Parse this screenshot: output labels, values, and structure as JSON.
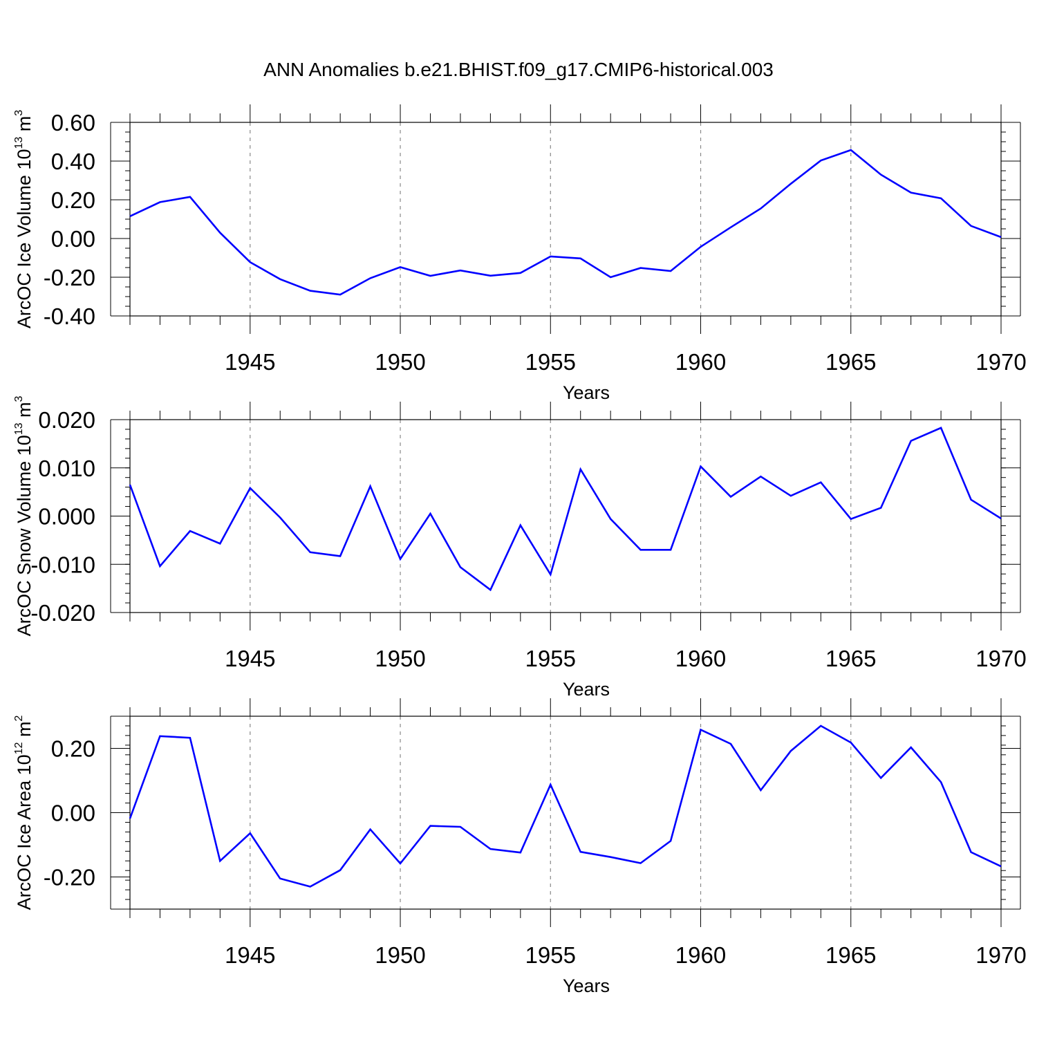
{
  "title": "ANN Anomalies b.e21.BHIST.f09_g17.CMIP6-historical.003",
  "colors": {
    "line": "#0000ff",
    "grid": "#888888",
    "axis": "#000000"
  },
  "chart_data": [
    {
      "type": "line",
      "ylabel": {
        "main": "ArcOC Ice Volume 10",
        "sup": "13",
        "unit": " m",
        "unit_sup": "3"
      },
      "xlabel": "Years",
      "xlim": [
        1941,
        1970
      ],
      "ylim": [
        -0.4,
        0.6
      ],
      "yticks": [
        -0.4,
        -0.2,
        0.0,
        0.2,
        0.4,
        0.6
      ],
      "ytick_labels": [
        "-0.40",
        "-0.20",
        "0.00",
        "0.20",
        "0.40",
        "0.60"
      ],
      "xticks": [
        1945,
        1950,
        1955,
        1960,
        1965,
        1970
      ],
      "xtick_labels": [
        "1945",
        "1950",
        "1955",
        "1960",
        "1965",
        "1970"
      ],
      "grid_x": [
        1945,
        1950,
        1955,
        1960,
        1965
      ],
      "x": [
        1941,
        1942,
        1943,
        1944,
        1945,
        1946,
        1947,
        1948,
        1949,
        1950,
        1951,
        1952,
        1953,
        1954,
        1955,
        1956,
        1957,
        1958,
        1959,
        1960,
        1961,
        1962,
        1963,
        1964,
        1965,
        1966,
        1967,
        1968,
        1969,
        1970
      ],
      "values": [
        0.115,
        0.188,
        0.215,
        0.03,
        -0.122,
        -0.21,
        -0.27,
        -0.29,
        -0.205,
        -0.148,
        -0.193,
        -0.165,
        -0.192,
        -0.178,
        -0.093,
        -0.103,
        -0.2,
        -0.152,
        -0.168,
        -0.043,
        0.058,
        0.155,
        0.283,
        0.403,
        0.457,
        0.33,
        0.237,
        0.208,
        0.065,
        0.007
      ]
    },
    {
      "type": "line",
      "ylabel": {
        "main": "ArcOC Snow Volume 10",
        "sup": "13",
        "unit": " m",
        "unit_sup": "3"
      },
      "xlabel": "Years",
      "xlim": [
        1941,
        1970
      ],
      "ylim": [
        -0.02,
        0.02
      ],
      "yticks": [
        -0.02,
        -0.01,
        0.0,
        0.01,
        0.02
      ],
      "ytick_labels": [
        "-0.020",
        "-0.010",
        "0.000",
        "0.010",
        "0.020"
      ],
      "xticks": [
        1945,
        1950,
        1955,
        1960,
        1965,
        1970
      ],
      "xtick_labels": [
        "1945",
        "1950",
        "1955",
        "1960",
        "1965",
        "1970"
      ],
      "grid_x": [
        1945,
        1950,
        1955,
        1960,
        1965
      ],
      "x": [
        1941,
        1942,
        1943,
        1944,
        1945,
        1946,
        1947,
        1948,
        1949,
        1950,
        1951,
        1952,
        1953,
        1954,
        1955,
        1956,
        1957,
        1958,
        1959,
        1960,
        1961,
        1962,
        1963,
        1964,
        1965,
        1966,
        1967,
        1968,
        1969,
        1970
      ],
      "values": [
        0.0065,
        -0.0104,
        -0.0031,
        -0.0057,
        0.0058,
        -0.0003,
        -0.0075,
        -0.0083,
        0.0062,
        -0.0089,
        0.0005,
        -0.0106,
        -0.0153,
        -0.0019,
        -0.0121,
        0.0097,
        -0.0006,
        -0.007,
        -0.007,
        0.0103,
        0.004,
        0.0082,
        0.0042,
        0.007,
        -0.0006,
        0.0017,
        0.0156,
        0.0183,
        0.0034,
        -0.0005
      ]
    },
    {
      "type": "line",
      "ylabel": {
        "main": "ArcOC Ice Area 10",
        "sup": "12",
        "unit": " m",
        "unit_sup": "2"
      },
      "xlabel": "Years",
      "xlim": [
        1941,
        1970
      ],
      "ylim": [
        -0.3,
        0.3
      ],
      "yticks": [
        -0.2,
        0.0,
        0.2
      ],
      "ytick_labels": [
        "-0.20",
        "0.00",
        "0.20"
      ],
      "xticks": [
        1945,
        1950,
        1955,
        1960,
        1965,
        1970
      ],
      "xtick_labels": [
        "1945",
        "1950",
        "1955",
        "1960",
        "1965",
        "1970"
      ],
      "grid_x": [
        1945,
        1950,
        1955,
        1960,
        1965
      ],
      "x": [
        1941,
        1942,
        1943,
        1944,
        1945,
        1946,
        1947,
        1948,
        1949,
        1950,
        1951,
        1952,
        1953,
        1954,
        1955,
        1956,
        1957,
        1958,
        1959,
        1960,
        1961,
        1962,
        1963,
        1964,
        1965,
        1966,
        1967,
        1968,
        1969,
        1970
      ],
      "values": [
        -0.018,
        0.238,
        0.233,
        -0.15,
        -0.064,
        -0.205,
        -0.23,
        -0.179,
        -0.052,
        -0.158,
        -0.041,
        -0.044,
        -0.113,
        -0.124,
        0.087,
        -0.122,
        -0.138,
        -0.157,
        -0.088,
        0.258,
        0.214,
        0.07,
        0.192,
        0.27,
        0.218,
        0.108,
        0.203,
        0.095,
        -0.123,
        -0.167
      ]
    }
  ]
}
